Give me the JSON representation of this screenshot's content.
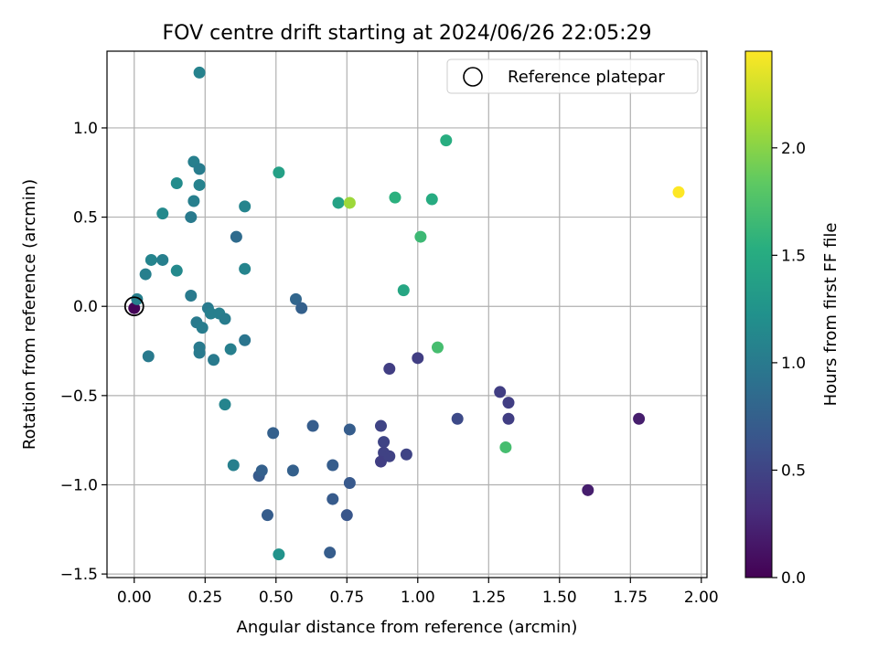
{
  "chart_data": {
    "type": "scatter",
    "title": "FOV centre drift starting at 2024/06/26 22:05:29",
    "xlabel": "Angular distance from reference (arcmin)",
    "ylabel": "Rotation from reference (arcmin)",
    "xlim": [
      -0.096,
      2.02
    ],
    "ylim": [
      -1.52,
      1.43
    ],
    "xticks": [
      0.0,
      0.25,
      0.5,
      0.75,
      1.0,
      1.25,
      1.5,
      1.75,
      2.0
    ],
    "xtick_labels": [
      "0.00",
      "0.25",
      "0.50",
      "0.75",
      "1.00",
      "1.25",
      "1.50",
      "1.75",
      "2.00"
    ],
    "yticks": [
      -1.5,
      -1.0,
      -0.5,
      0.0,
      0.5,
      1.0
    ],
    "ytick_labels": [
      "−1.5",
      "−1.0",
      "−0.5",
      "0.0",
      "0.5",
      "1.0"
    ],
    "grid": true,
    "colormap": "viridis",
    "colorbar": {
      "label": "Hours from first FF file",
      "range": [
        0,
        2.45
      ],
      "ticks": [
        0.0,
        0.5,
        1.0,
        1.5,
        2.0
      ],
      "tick_labels": [
        "0.0",
        "0.5",
        "1.0",
        "1.5",
        "2.0"
      ]
    },
    "legend": {
      "position": "top-right",
      "entries": [
        "Reference platepar"
      ]
    },
    "reference_point": {
      "x": 0.0,
      "y": 0.0
    },
    "points": [
      {
        "x": 0.0,
        "y": -0.01,
        "t": 0.02
      },
      {
        "x": 0.01,
        "y": 0.04,
        "t": 1.05
      },
      {
        "x": 0.04,
        "y": 0.18,
        "t": 1.05
      },
      {
        "x": 0.05,
        "y": -0.28,
        "t": 1.0
      },
      {
        "x": 0.06,
        "y": 0.26,
        "t": 1.1
      },
      {
        "x": 0.1,
        "y": 0.52,
        "t": 1.15
      },
      {
        "x": 0.1,
        "y": 0.26,
        "t": 1.05
      },
      {
        "x": 0.15,
        "y": 0.2,
        "t": 1.15
      },
      {
        "x": 0.15,
        "y": 0.69,
        "t": 1.18
      },
      {
        "x": 0.2,
        "y": 0.5,
        "t": 1.0
      },
      {
        "x": 0.2,
        "y": 0.06,
        "t": 1.0
      },
      {
        "x": 0.21,
        "y": 0.81,
        "t": 1.05
      },
      {
        "x": 0.21,
        "y": 0.59,
        "t": 1.05
      },
      {
        "x": 0.23,
        "y": 0.77,
        "t": 1.02
      },
      {
        "x": 0.23,
        "y": 0.68,
        "t": 1.08
      },
      {
        "x": 0.23,
        "y": 1.31,
        "t": 1.08
      },
      {
        "x": 0.22,
        "y": -0.09,
        "t": 1.0
      },
      {
        "x": 0.24,
        "y": -0.12,
        "t": 1.02
      },
      {
        "x": 0.23,
        "y": -0.23,
        "t": 1.0
      },
      {
        "x": 0.23,
        "y": -0.26,
        "t": 1.0
      },
      {
        "x": 0.26,
        "y": -0.01,
        "t": 1.0
      },
      {
        "x": 0.27,
        "y": -0.04,
        "t": 1.05
      },
      {
        "x": 0.28,
        "y": -0.3,
        "t": 1.0
      },
      {
        "x": 0.3,
        "y": -0.04,
        "t": 1.05
      },
      {
        "x": 0.32,
        "y": -0.07,
        "t": 1.02
      },
      {
        "x": 0.32,
        "y": -0.55,
        "t": 1.1
      },
      {
        "x": 0.34,
        "y": -0.24,
        "t": 1.05
      },
      {
        "x": 0.35,
        "y": -0.89,
        "t": 1.05
      },
      {
        "x": 0.36,
        "y": 0.39,
        "t": 0.85
      },
      {
        "x": 0.39,
        "y": -0.19,
        "t": 0.95
      },
      {
        "x": 0.39,
        "y": 0.21,
        "t": 1.1
      },
      {
        "x": 0.39,
        "y": 0.56,
        "t": 1.1
      },
      {
        "x": 0.44,
        "y": -0.95,
        "t": 0.7
      },
      {
        "x": 0.45,
        "y": -0.92,
        "t": 0.75
      },
      {
        "x": 0.47,
        "y": -1.17,
        "t": 0.72
      },
      {
        "x": 0.49,
        "y": -0.71,
        "t": 0.75
      },
      {
        "x": 0.51,
        "y": 0.75,
        "t": 1.38
      },
      {
        "x": 0.51,
        "y": -1.39,
        "t": 1.25
      },
      {
        "x": 0.56,
        "y": -0.92,
        "t": 0.75
      },
      {
        "x": 0.57,
        "y": 0.04,
        "t": 0.8
      },
      {
        "x": 0.59,
        "y": -0.01,
        "t": 0.75
      },
      {
        "x": 0.63,
        "y": -0.67,
        "t": 0.72
      },
      {
        "x": 0.69,
        "y": -1.38,
        "t": 0.72
      },
      {
        "x": 0.7,
        "y": -0.89,
        "t": 0.72
      },
      {
        "x": 0.7,
        "y": -1.08,
        "t": 0.7
      },
      {
        "x": 0.72,
        "y": 0.58,
        "t": 1.4
      },
      {
        "x": 0.75,
        "y": -1.17,
        "t": 0.65
      },
      {
        "x": 0.76,
        "y": -0.69,
        "t": 0.72
      },
      {
        "x": 0.76,
        "y": -0.99,
        "t": 0.68
      },
      {
        "x": 0.76,
        "y": 0.58,
        "t": 2.08
      },
      {
        "x": 0.87,
        "y": -0.67,
        "t": 0.5
      },
      {
        "x": 0.88,
        "y": -0.76,
        "t": 0.5
      },
      {
        "x": 0.88,
        "y": -0.82,
        "t": 0.48
      },
      {
        "x": 0.87,
        "y": -0.87,
        "t": 0.45
      },
      {
        "x": 0.9,
        "y": -0.84,
        "t": 0.48
      },
      {
        "x": 0.9,
        "y": -0.35,
        "t": 0.45
      },
      {
        "x": 0.92,
        "y": 0.61,
        "t": 1.55
      },
      {
        "x": 0.95,
        "y": 0.09,
        "t": 1.45
      },
      {
        "x": 0.96,
        "y": -0.83,
        "t": 0.5
      },
      {
        "x": 1.0,
        "y": -0.29,
        "t": 0.45
      },
      {
        "x": 1.01,
        "y": 0.39,
        "t": 1.65
      },
      {
        "x": 1.05,
        "y": 0.6,
        "t": 1.5
      },
      {
        "x": 1.07,
        "y": -0.23,
        "t": 1.7
      },
      {
        "x": 1.1,
        "y": 0.93,
        "t": 1.52
      },
      {
        "x": 1.14,
        "y": -0.63,
        "t": 0.55
      },
      {
        "x": 1.29,
        "y": -0.48,
        "t": 0.45
      },
      {
        "x": 1.31,
        "y": -0.79,
        "t": 1.7
      },
      {
        "x": 1.32,
        "y": -0.54,
        "t": 0.45
      },
      {
        "x": 1.32,
        "y": -0.63,
        "t": 0.45
      },
      {
        "x": 1.6,
        "y": -1.03,
        "t": 0.2
      },
      {
        "x": 1.78,
        "y": -0.63,
        "t": 0.2
      },
      {
        "x": 1.92,
        "y": 0.64,
        "t": 2.45
      }
    ]
  }
}
